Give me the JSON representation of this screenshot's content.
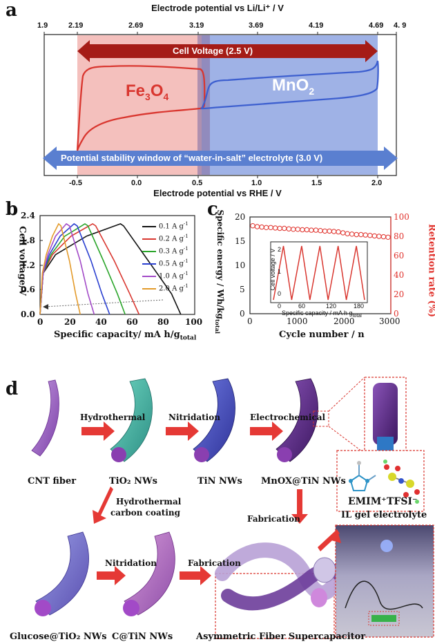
{
  "panel_a": {
    "letter": "a",
    "top_axis_title": "Electrode potential vs Li/Li⁺ / V",
    "top_ticks": [
      "1.9",
      "2.19",
      "2.69",
      "3.19",
      "3.69",
      "4.19",
      "4.69",
      "4. 9"
    ],
    "bottom_axis_title": "Electrode potential vs RHE / V",
    "bottom_ticks": [
      "-0.5",
      "0.0",
      "0.5",
      "1.0",
      "1.5",
      "2.0"
    ],
    "cell_voltage_label": "Cell Voltage (2.5 V)",
    "stability_label": "Potential stability window of “water-in-salt” electrolyte (3.0 V)",
    "fe3o4_label": "Fe",
    "fe3o4_sub1": "3",
    "fe3o4_mid": "O",
    "fe3o4_sub2": "4",
    "mno2_label": "MnO",
    "mno2_sub": "2",
    "colors": {
      "red": "#d9362f",
      "blue": "#3d5fcf",
      "pink_fill": "#f2b7b5",
      "blue_fill": "#9aaee6",
      "dark_red_arrow": "#a51c17",
      "blue_arrow": "#5a7fd0"
    }
  },
  "panel_b": {
    "letter": "b",
    "ylabel": "Cell voltage/V",
    "xlabel": "Specific capacity/ mA h/g",
    "xlabel_sub": "total",
    "yticks": [
      "0.0",
      "0.6",
      "1.2",
      "1.8",
      "2.4"
    ],
    "xticks": [
      "0",
      "20",
      "40",
      "60",
      "80",
      "100"
    ],
    "legend": [
      "0.1 A g",
      "0.2 A g",
      "0.3 A g",
      "0.5 A g",
      "1.0 A g",
      "2.0 A g"
    ],
    "legend_sup": "-1"
  },
  "panel_c": {
    "letter": "c",
    "ylabel_left": "Specific energy / Wh/kg",
    "ylabel_left_sub": "total",
    "ylabel_right": "Retention rate (%)",
    "xlabel": "Cycle number / n",
    "yticks_left": [
      "0",
      "5",
      "10",
      "15",
      "20"
    ],
    "yticks_right": [
      "0",
      "20",
      "40",
      "60",
      "80",
      "100"
    ],
    "xticks": [
      "0",
      "1000",
      "2000",
      "3000"
    ],
    "inset_ylabel": "Cell voltage / V",
    "inset_xlabel": "Specific capacity / mA h g",
    "inset_xlabel_sub": "total",
    "inset_yticks": [
      "0",
      "1",
      "2"
    ],
    "inset_xticks": [
      "0",
      "60",
      "120",
      "180"
    ]
  },
  "panel_d": {
    "letter": "d",
    "fibers": [
      "CNT fiber",
      "TiO₂ NWs",
      "TiN NWs",
      "MnOX@TiN NWs",
      "Glucose@TiO₂ NWs",
      "C@TiN NWs",
      "Asymmetric Fiber Supercapacitor"
    ],
    "steps": [
      "Hydrothermal",
      "Nitridation",
      "Electrochemical",
      "Hydrothermal",
      "carbon coating",
      "Nitridation",
      "Fabrication",
      "Fabrication"
    ],
    "ions": [
      "EMIM⁺",
      "TFSI⁻"
    ],
    "electrolyte": "IL  gel electrolyte"
  },
  "chart_data": [
    {
      "type": "line",
      "title": "",
      "xlabel": "Electrode potential vs RHE / V",
      "ylabel": "",
      "xlim": [
        -0.5,
        2.0
      ],
      "series": [
        {
          "name": "Fe3O4",
          "x": [
            -0.5,
            -0.45,
            -0.3,
            0.0,
            0.3,
            0.5,
            0.55,
            0.55,
            0.4,
            0.0,
            -0.3,
            -0.45,
            -0.5
          ]
        },
        {
          "name": "MnO2",
          "x": [
            0.5,
            0.6,
            1.0,
            1.5,
            2.0,
            2.0,
            1.5,
            1.0,
            0.6,
            0.5
          ]
        }
      ]
    },
    {
      "type": "line",
      "xlabel": "Specific capacity/ mA h/g total",
      "ylabel": "Cell voltage/V",
      "xlim": [
        0,
        100
      ],
      "ylim": [
        0,
        2.4
      ],
      "series": [
        {
          "name": "0.1 A g-1",
          "x": [
            0,
            2,
            10,
            30,
            52,
            54,
            70,
            85,
            91
          ],
          "y": [
            0,
            1.0,
            1.45,
            1.9,
            2.2,
            2.15,
            1.3,
            0.5,
            0.0
          ]
        },
        {
          "name": "0.2 A g-1",
          "x": [
            0,
            2,
            8,
            20,
            34,
            36,
            48,
            58,
            64
          ],
          "y": [
            0,
            1.0,
            1.45,
            1.9,
            2.2,
            2.15,
            1.3,
            0.5,
            0.0
          ]
        },
        {
          "name": "0.3 A g-1",
          "x": [
            0,
            2,
            7,
            16,
            29,
            31,
            41,
            50,
            55
          ],
          "y": [
            0,
            1.0,
            1.45,
            1.9,
            2.2,
            2.15,
            1.3,
            0.5,
            0.0
          ]
        },
        {
          "name": "0.5 A g-1",
          "x": [
            0,
            2,
            6,
            13,
            22,
            24,
            33,
            40,
            45
          ],
          "y": [
            0,
            1.0,
            1.45,
            1.9,
            2.2,
            2.15,
            1.3,
            0.5,
            0.0
          ]
        },
        {
          "name": "1.0 A g-1",
          "x": [
            0,
            2,
            5,
            10,
            17,
            19,
            26,
            31,
            35
          ],
          "y": [
            0,
            1.0,
            1.45,
            1.9,
            2.2,
            2.15,
            1.3,
            0.5,
            0.0
          ]
        },
        {
          "name": "2.0 A g-1",
          "x": [
            0,
            1.5,
            4,
            8,
            12,
            13.5,
            19,
            23,
            26
          ],
          "y": [
            0,
            1.0,
            1.45,
            1.9,
            2.2,
            2.15,
            1.3,
            0.5,
            0.0
          ]
        }
      ]
    },
    {
      "type": "scatter",
      "xlabel": "Cycle number / n",
      "ylabel": "Specific energy / Wh/kg total",
      "xlim": [
        0,
        3000
      ],
      "ylim": [
        0,
        20
      ],
      "series": [
        {
          "name": "Retention rate (%)",
          "x": [
            0,
            100,
            200,
            300,
            400,
            500,
            600,
            700,
            800,
            900,
            1000,
            1100,
            1200,
            1300,
            1400,
            1500,
            1600,
            1700,
            1800,
            1900,
            2000,
            2100,
            2200,
            2300,
            2400,
            2500,
            2600,
            2700,
            2800,
            2900,
            3000
          ],
          "y": [
            100,
            99,
            98.5,
            98,
            98,
            97.5,
            97,
            97,
            96.5,
            96,
            96,
            95.5,
            95.5,
            95,
            95,
            94.5,
            94,
            94,
            93.5,
            93,
            92,
            91,
            90.5,
            90,
            90,
            89.5,
            89,
            88.5,
            88,
            87.5,
            87
          ]
        }
      ]
    }
  ]
}
